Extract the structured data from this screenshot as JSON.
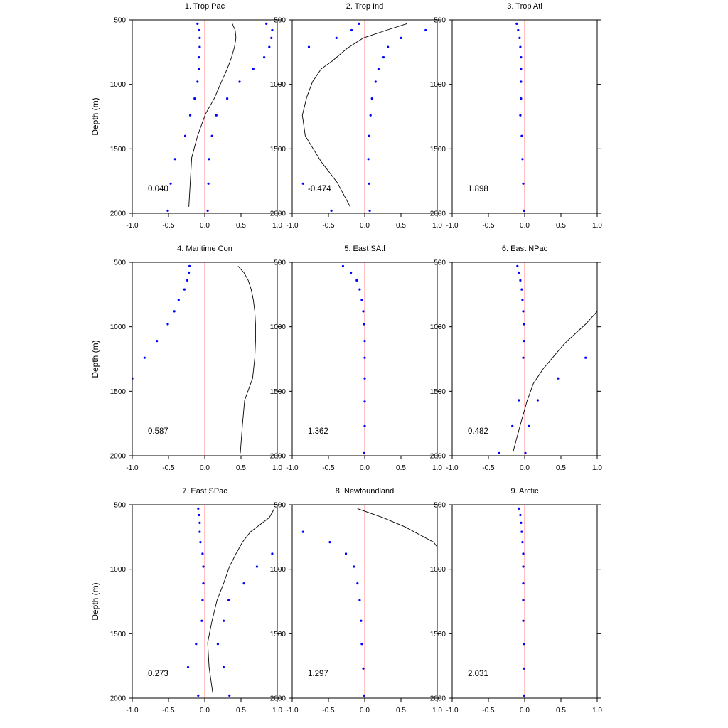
{
  "chart_data": {
    "type": "scatter",
    "ylabel": "Depth (m)",
    "xlim": [
      -1.0,
      1.0
    ],
    "ylim": [
      500,
      2000
    ],
    "y_inverted": true,
    "grid": false,
    "x_ticks": [
      "-1.0",
      "-0.5",
      "0.0",
      "0.5",
      "1.0"
    ],
    "y_ticks": [
      "500",
      "1000",
      "1500",
      "2000"
    ],
    "colors": {
      "dots": "#0000ff",
      "zero_line": "#ff9a9a",
      "curve": "#000000",
      "frame": "#000000"
    },
    "panels": [
      {
        "title": "1. Trop Pac",
        "stat": "0.040",
        "series": [
          {
            "style": "dots",
            "points": [
              [
                -0.1,
                530
              ],
              [
                -0.08,
                580
              ],
              [
                -0.07,
                640
              ],
              [
                -0.07,
                710
              ],
              [
                -0.08,
                790
              ],
              [
                -0.08,
                880
              ],
              [
                -0.1,
                980
              ],
              [
                -0.14,
                1110
              ],
              [
                -0.2,
                1240
              ],
              [
                -0.27,
                1400
              ],
              [
                -0.41,
                1580
              ],
              [
                -0.47,
                1770
              ],
              [
                -0.51,
                1980
              ]
            ]
          },
          {
            "style": "dots",
            "points": [
              [
                0.85,
                530
              ],
              [
                0.93,
                580
              ],
              [
                0.92,
                640
              ],
              [
                0.89,
                710
              ],
              [
                0.82,
                790
              ],
              [
                0.67,
                880
              ],
              [
                0.48,
                980
              ],
              [
                0.31,
                1110
              ],
              [
                0.16,
                1240
              ],
              [
                0.1,
                1400
              ],
              [
                0.06,
                1580
              ],
              [
                0.05,
                1770
              ],
              [
                0.04,
                1980
              ]
            ]
          },
          {
            "style": "line",
            "points": [
              [
                0.38,
                530
              ],
              [
                0.42,
                580
              ],
              [
                0.43,
                640
              ],
              [
                0.41,
                710
              ],
              [
                0.37,
                790
              ],
              [
                0.31,
                880
              ],
              [
                0.23,
                980
              ],
              [
                0.13,
                1110
              ],
              [
                0.01,
                1230
              ],
              [
                -0.1,
                1400
              ],
              [
                -0.18,
                1570
              ],
              [
                -0.2,
                1760
              ],
              [
                -0.22,
                1950
              ]
            ]
          }
        ]
      },
      {
        "title": "2. Trop Ind",
        "stat": "-0.474",
        "series": [
          {
            "style": "dots",
            "points": [
              [
                -0.08,
                530
              ],
              [
                -0.18,
                580
              ],
              [
                -0.39,
                640
              ],
              [
                -0.77,
                710
              ],
              [
                -0.85,
                1770
              ],
              [
                -0.46,
                1980
              ]
            ]
          },
          {
            "style": "dots",
            "points": [
              [
                0.84,
                580
              ],
              [
                0.5,
                640
              ],
              [
                0.32,
                710
              ],
              [
                0.26,
                790
              ],
              [
                0.19,
                880
              ],
              [
                0.15,
                980
              ],
              [
                0.1,
                1110
              ],
              [
                0.08,
                1240
              ],
              [
                0.06,
                1400
              ],
              [
                0.05,
                1580
              ],
              [
                0.06,
                1770
              ],
              [
                0.07,
                1980
              ]
            ]
          },
          {
            "style": "line",
            "points": [
              [
                0.58,
                530
              ],
              [
                0.3,
                580
              ],
              [
                -0.02,
                640
              ],
              [
                -0.24,
                720
              ],
              [
                -0.45,
                820
              ],
              [
                -0.6,
                880
              ],
              [
                -0.72,
                980
              ],
              [
                -0.8,
                1100
              ],
              [
                -0.86,
                1240
              ],
              [
                -0.82,
                1400
              ],
              [
                -0.6,
                1600
              ],
              [
                -0.38,
                1760
              ],
              [
                -0.2,
                1950
              ]
            ]
          }
        ]
      },
      {
        "title": "3. Trop Atl",
        "stat": "1.898",
        "series": [
          {
            "style": "dots",
            "points": [
              [
                -0.11,
                530
              ],
              [
                -0.09,
                580
              ],
              [
                -0.07,
                640
              ],
              [
                -0.06,
                710
              ],
              [
                -0.05,
                790
              ],
              [
                -0.05,
                880
              ],
              [
                -0.05,
                980
              ],
              [
                -0.05,
                1110
              ],
              [
                -0.06,
                1240
              ],
              [
                -0.04,
                1400
              ],
              [
                -0.03,
                1580
              ],
              [
                -0.02,
                1770
              ],
              [
                -0.01,
                1980
              ]
            ]
          }
        ]
      },
      {
        "title": "4. Maritime Con",
        "stat": "0.587",
        "series": [
          {
            "style": "dots",
            "points": [
              [
                -0.21,
                530
              ],
              [
                -0.22,
                580
              ],
              [
                -0.24,
                640
              ],
              [
                -0.28,
                710
              ],
              [
                -0.36,
                790
              ],
              [
                -0.42,
                880
              ],
              [
                -0.51,
                980
              ],
              [
                -0.66,
                1110
              ],
              [
                -0.83,
                1240
              ],
              [
                -1.0,
                1400
              ]
            ]
          },
          {
            "style": "line",
            "points": [
              [
                0.46,
                530
              ],
              [
                0.54,
                580
              ],
              [
                0.6,
                640
              ],
              [
                0.64,
                710
              ],
              [
                0.67,
                790
              ],
              [
                0.69,
                880
              ],
              [
                0.7,
                980
              ],
              [
                0.7,
                1110
              ],
              [
                0.69,
                1240
              ],
              [
                0.66,
                1400
              ],
              [
                0.55,
                1570
              ],
              [
                0.52,
                1760
              ],
              [
                0.49,
                1980
              ]
            ]
          }
        ]
      },
      {
        "title": "5. East SAtl",
        "stat": "1.362",
        "series": [
          {
            "style": "dots",
            "points": [
              [
                -0.3,
                530
              ],
              [
                -0.19,
                580
              ],
              [
                -0.11,
                640
              ],
              [
                -0.07,
                710
              ],
              [
                -0.04,
                790
              ],
              [
                -0.02,
                880
              ],
              [
                -0.01,
                980
              ],
              [
                0.0,
                1110
              ],
              [
                0.0,
                1240
              ],
              [
                0.0,
                1400
              ],
              [
                0.0,
                1580
              ],
              [
                0.0,
                1770
              ],
              [
                -0.01,
                1980
              ]
            ]
          }
        ]
      },
      {
        "title": "6. East NPac",
        "stat": "0.482",
        "series": [
          {
            "style": "dots",
            "points": [
              [
                -0.1,
                530
              ],
              [
                -0.08,
                580
              ],
              [
                -0.06,
                640
              ],
              [
                -0.04,
                710
              ],
              [
                -0.03,
                790
              ],
              [
                -0.02,
                880
              ],
              [
                -0.01,
                980
              ],
              [
                -0.01,
                1110
              ],
              [
                -0.02,
                1240
              ],
              [
                -0.08,
                1570
              ],
              [
                -0.17,
                1770
              ],
              [
                -0.35,
                1980
              ]
            ]
          },
          {
            "style": "dots",
            "points": [
              [
                0.84,
                1240
              ],
              [
                0.46,
                1400
              ],
              [
                0.18,
                1570
              ],
              [
                0.06,
                1770
              ],
              [
                0.01,
                1980
              ]
            ]
          },
          {
            "style": "line",
            "points": [
              [
                1.0,
                880
              ],
              [
                0.84,
                980
              ],
              [
                0.55,
                1130
              ],
              [
                0.25,
                1330
              ],
              [
                0.12,
                1440
              ],
              [
                0.03,
                1580
              ],
              [
                -0.06,
                1760
              ],
              [
                -0.16,
                1970
              ]
            ]
          }
        ]
      },
      {
        "title": "7. East SPac",
        "stat": "0.273",
        "series": [
          {
            "style": "dots",
            "points": [
              [
                -0.09,
                530
              ],
              [
                -0.08,
                580
              ],
              [
                -0.07,
                640
              ],
              [
                -0.07,
                710
              ],
              [
                -0.06,
                790
              ],
              [
                -0.03,
                880
              ],
              [
                -0.02,
                980
              ],
              [
                -0.02,
                1110
              ],
              [
                -0.03,
                1240
              ],
              [
                -0.04,
                1400
              ],
              [
                -0.12,
                1580
              ],
              [
                -0.23,
                1760
              ],
              [
                -0.09,
                1980
              ]
            ]
          },
          {
            "style": "dots",
            "points": [
              [
                0.93,
                880
              ],
              [
                0.72,
                980
              ],
              [
                0.54,
                1110
              ],
              [
                0.33,
                1240
              ],
              [
                0.26,
                1400
              ],
              [
                0.18,
                1580
              ],
              [
                0.26,
                1760
              ],
              [
                0.34,
                1980
              ]
            ]
          },
          {
            "style": "line",
            "points": [
              [
                0.96,
                530
              ],
              [
                0.89,
                600
              ],
              [
                0.63,
                710
              ],
              [
                0.52,
                790
              ],
              [
                0.43,
                880
              ],
              [
                0.34,
                980
              ],
              [
                0.26,
                1110
              ],
              [
                0.17,
                1240
              ],
              [
                0.1,
                1400
              ],
              [
                0.04,
                1570
              ],
              [
                0.06,
                1760
              ],
              [
                0.11,
                1960
              ]
            ]
          }
        ]
      },
      {
        "title": "8. Newfoundland",
        "stat": "1.297",
        "series": [
          {
            "style": "dots",
            "points": [
              [
                -0.85,
                710
              ],
              [
                -0.48,
                790
              ],
              [
                -0.26,
                880
              ],
              [
                -0.15,
                980
              ],
              [
                -0.1,
                1110
              ],
              [
                -0.07,
                1240
              ],
              [
                -0.05,
                1400
              ],
              [
                -0.04,
                1580
              ],
              [
                -0.02,
                1770
              ],
              [
                -0.01,
                1980
              ]
            ]
          },
          {
            "style": "line",
            "points": [
              [
                -0.1,
                530
              ],
              [
                0.25,
                600
              ],
              [
                0.55,
                670
              ],
              [
                0.95,
                790
              ],
              [
                1.03,
                850
              ]
            ]
          }
        ]
      },
      {
        "title": "9. Arctic",
        "stat": "2.031",
        "series": [
          {
            "style": "dots",
            "points": [
              [
                -0.08,
                530
              ],
              [
                -0.06,
                580
              ],
              [
                -0.05,
                640
              ],
              [
                -0.04,
                710
              ],
              [
                -0.03,
                790
              ],
              [
                -0.02,
                880
              ],
              [
                -0.02,
                980
              ],
              [
                -0.02,
                1110
              ],
              [
                -0.02,
                1240
              ],
              [
                -0.02,
                1400
              ],
              [
                -0.01,
                1580
              ],
              [
                -0.01,
                1770
              ],
              [
                -0.01,
                1980
              ]
            ]
          }
        ]
      }
    ]
  }
}
